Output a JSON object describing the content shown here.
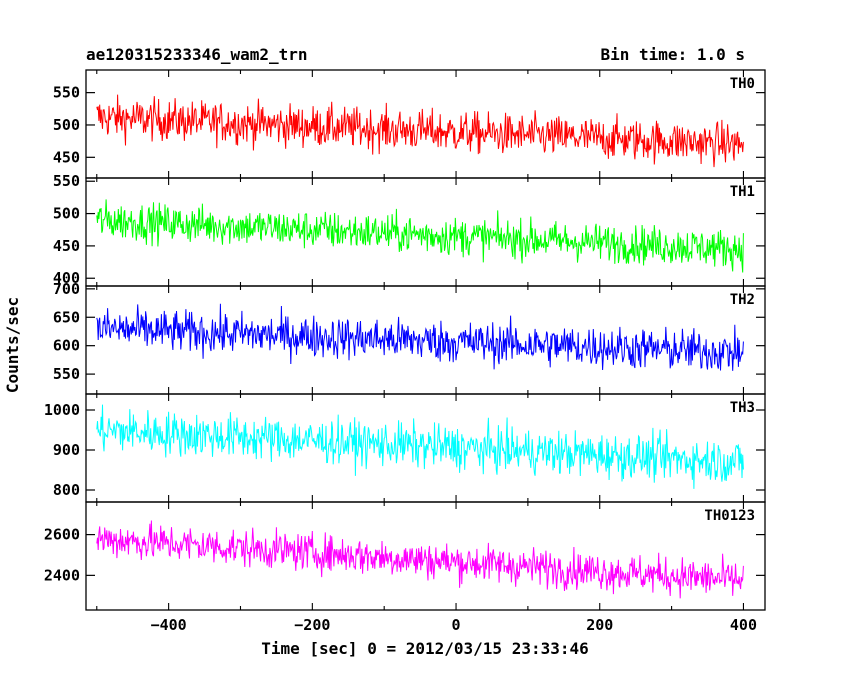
{
  "header": {
    "title": "ae120315233346_wam2_trn",
    "bin_time": "Bin time: 1.0 s"
  },
  "chart_data": {
    "type": "line",
    "title": "ae120315233346_wam2_trn",
    "subtitle": "Bin time: 1.0 s",
    "xlabel": "Time [sec] 0 = 2012/03/15 23:33:46",
    "ylabel": "Counts/sec",
    "xlim": [
      -515,
      430
    ],
    "x_ticks": [
      -400,
      -200,
      0,
      200,
      400
    ],
    "x_tick_labels": [
      "−400",
      "−200",
      "0",
      "200",
      "400"
    ],
    "data_x_range": [
      -500,
      400
    ],
    "bin_time_s": 1.0,
    "panels": [
      {
        "name": "TH0",
        "color": "#ff0000",
        "ylim": [
          418,
          585
        ],
        "y_ticks": [
          450,
          500,
          550
        ],
        "mean_start": 512,
        "mean_end": 470,
        "noise_amplitude": 26
      },
      {
        "name": "TH1",
        "color": "#00ff00",
        "ylim": [
          388,
          555
        ],
        "y_ticks": [
          400,
          450,
          500,
          550
        ],
        "mean_start": 490,
        "mean_end": 445,
        "noise_amplitude": 24
      },
      {
        "name": "TH2",
        "color": "#0000ff",
        "ylim": [
          515,
          705
        ],
        "y_ticks": [
          550,
          600,
          650,
          700
        ],
        "mean_start": 630,
        "mean_end": 588,
        "noise_amplitude": 30
      },
      {
        "name": "TH3",
        "color": "#00ffff",
        "ylim": [
          770,
          1040
        ],
        "y_ticks": [
          800,
          900,
          1000
        ],
        "mean_start": 950,
        "mean_end": 870,
        "noise_amplitude": 45
      },
      {
        "name": "TH0123",
        "color": "#ff00ff",
        "ylim": [
          2230,
          2760
        ],
        "y_ticks": [
          2400,
          2600
        ],
        "mean_start": 2580,
        "mean_end": 2375,
        "noise_amplitude": 75
      }
    ]
  }
}
